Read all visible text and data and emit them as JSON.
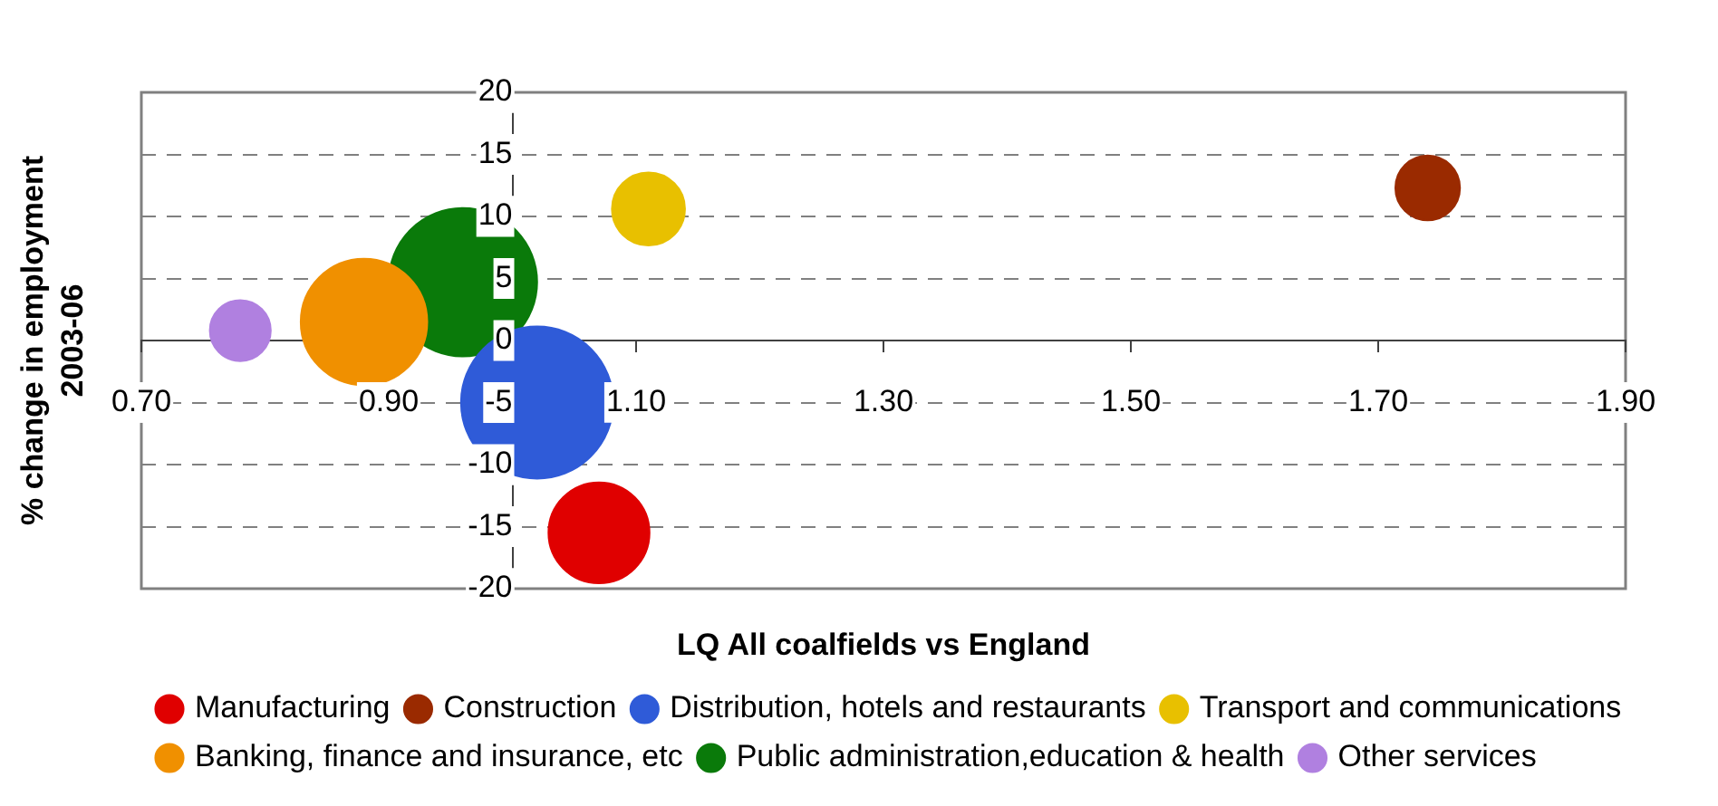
{
  "chart_data": {
    "type": "bubble",
    "xlabel": "LQ All coalfields vs England",
    "ylabel": "% change in employment 2003-06",
    "xlim": [
      0.7,
      1.9
    ],
    "xticks": [
      {
        "value": 0.7,
        "label": "0.70"
      },
      {
        "value": 0.9,
        "label": "0.90"
      },
      {
        "value": 1.1,
        "label": "1.10"
      },
      {
        "value": 1.3,
        "label": "1.30"
      },
      {
        "value": 1.5,
        "label": "1.50"
      },
      {
        "value": 1.7,
        "label": "1.70"
      },
      {
        "value": 1.9,
        "label": "1.90"
      }
    ],
    "ylim": [
      -20,
      20
    ],
    "yticks": [
      -20,
      -15,
      -10,
      -5,
      0,
      5,
      10,
      15,
      20
    ],
    "grid": "y",
    "legend": "bottom",
    "series": [
      {
        "name": "Manufacturing",
        "color": "#e00000",
        "x": [
          1.07
        ],
        "values": [
          -15.5
        ],
        "sizes": [
          0.44
        ]
      },
      {
        "name": "Construction",
        "color": "#9a2a00",
        "x": [
          1.74
        ],
        "values": [
          12.3
        ],
        "sizes": [
          0.18
        ]
      },
      {
        "name": "Distribution, hotels and restaurants",
        "color": "#2f5bd8",
        "x": [
          1.02
        ],
        "values": [
          -5.0
        ],
        "sizes": [
          1
        ]
      },
      {
        "name": "Transport and communications",
        "color": "#e8c000",
        "x": [
          1.11
        ],
        "values": [
          10.6
        ],
        "sizes": [
          0.23
        ]
      },
      {
        "name": "Banking, finance and insurance, etc",
        "color": "#f09000",
        "x": [
          0.88
        ],
        "values": [
          1.5
        ],
        "sizes": [
          0.69
        ]
      },
      {
        "name": "Public administration,education & health",
        "color": "#0a7a0a",
        "x": [
          0.96
        ],
        "values": [
          4.7
        ],
        "sizes": [
          0.95
        ]
      },
      {
        "name": "Other services",
        "color": "#b080e0",
        "x": [
          0.78
        ],
        "values": [
          0.8
        ],
        "sizes": [
          0.16
        ]
      }
    ]
  }
}
